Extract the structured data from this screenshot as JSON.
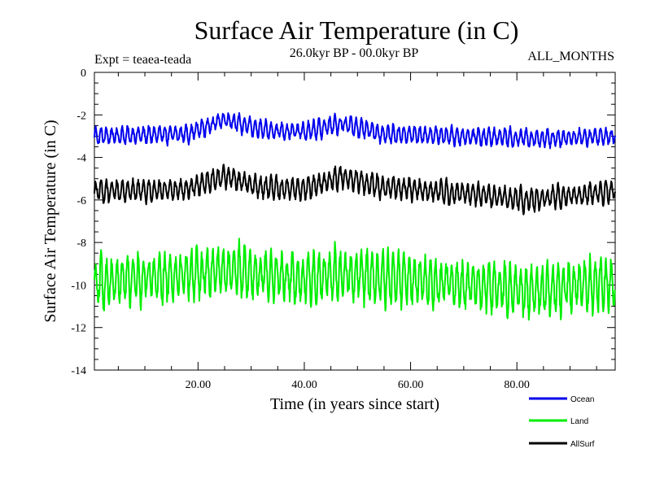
{
  "chart_data": {
    "type": "line",
    "title": "Surface Air Temperature (in C)",
    "subtitle_left": "Expt = teaea-teada",
    "subtitle_center": "26.0kyr BP - 00.0kyr BP",
    "subtitle_right": "ALL_MONTHS",
    "xlabel": "Time (in years since start)",
    "ylabel": "Surface Air Temperature (in C)",
    "xlim": [
      0.5,
      98.5
    ],
    "ylim": [
      -14,
      0
    ],
    "x_ticks": [
      20,
      40,
      60,
      80
    ],
    "x_tick_labels": [
      "20.00",
      "40.00",
      "60.00",
      "80.00"
    ],
    "y_ticks": [
      0,
      -2,
      -4,
      -6,
      -8,
      -10,
      -12,
      -14
    ],
    "y_tick_labels": [
      "0",
      "-2",
      "-4",
      "-6",
      "-8",
      "-10",
      "-12",
      "-14"
    ],
    "samples_per_year": 12,
    "series": [
      {
        "name": "Ocean",
        "color": "#0000ee",
        "mean": -3.0,
        "seasonal_amplitude": 0.35,
        "noise": 0.12,
        "drift": [
          [
            0,
            0.0
          ],
          [
            18,
            0.1
          ],
          [
            25,
            0.8
          ],
          [
            32,
            0.3
          ],
          [
            40,
            0.2
          ],
          [
            47,
            0.6
          ],
          [
            55,
            0.1
          ],
          [
            70,
            0.0
          ],
          [
            85,
            -0.1
          ],
          [
            98,
            0.0
          ]
        ]
      },
      {
        "name": "Land",
        "color": "#00ee00",
        "mean": -9.9,
        "seasonal_amplitude": 1.0,
        "noise": 0.35,
        "drift": [
          [
            0,
            0.0
          ],
          [
            25,
            0.6
          ],
          [
            40,
            0.2
          ],
          [
            47,
            0.4
          ],
          [
            70,
            -0.1
          ],
          [
            82,
            -0.4
          ],
          [
            98,
            0.0
          ]
        ]
      },
      {
        "name": "AllSurf",
        "color": "#000000",
        "mean": -5.6,
        "seasonal_amplitude": 0.45,
        "noise": 0.15,
        "drift": [
          [
            0,
            0.0
          ],
          [
            18,
            0.1
          ],
          [
            25,
            0.7
          ],
          [
            32,
            0.2
          ],
          [
            40,
            0.1
          ],
          [
            47,
            0.7
          ],
          [
            55,
            0.2
          ],
          [
            70,
            -0.1
          ],
          [
            82,
            -0.4
          ],
          [
            98,
            0.0
          ]
        ]
      }
    ],
    "legend_position": "bottom-right"
  }
}
